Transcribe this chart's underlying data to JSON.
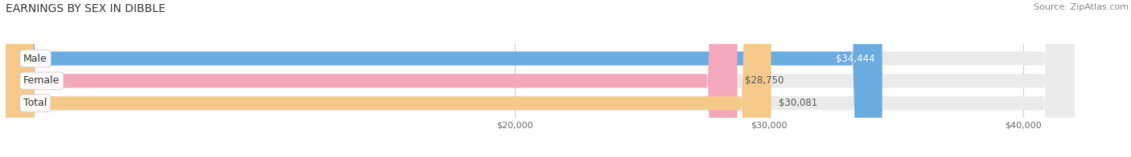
{
  "title": "EARNINGS BY SEX IN DIBBLE",
  "source": "Source: ZipAtlas.com",
  "categories": [
    "Male",
    "Female",
    "Total"
  ],
  "values": [
    34444,
    28750,
    30081
  ],
  "bar_colors": [
    "#6aabe0",
    "#f4a8bc",
    "#f5c98a"
  ],
  "bar_bg_color": "#e8e8e8",
  "value_labels": [
    "$34,444",
    "$28,750",
    "$30,081"
  ],
  "value_inside": [
    true,
    false,
    false
  ],
  "xmin": 0,
  "xmax": 42000,
  "xlim_left": 0,
  "xlim_right": 44000,
  "xticks": [
    20000,
    30000,
    40000
  ],
  "xticklabels": [
    "$20,000",
    "$30,000",
    "$40,000"
  ],
  "title_fontsize": 10,
  "source_fontsize": 8,
  "bar_label_fontsize": 9,
  "value_fontsize": 8.5,
  "fig_bg_color": "#ffffff",
  "bar_height": 0.62,
  "grid_color": "#d0d0d0",
  "bar_bg_color2": "#ebebeb"
}
